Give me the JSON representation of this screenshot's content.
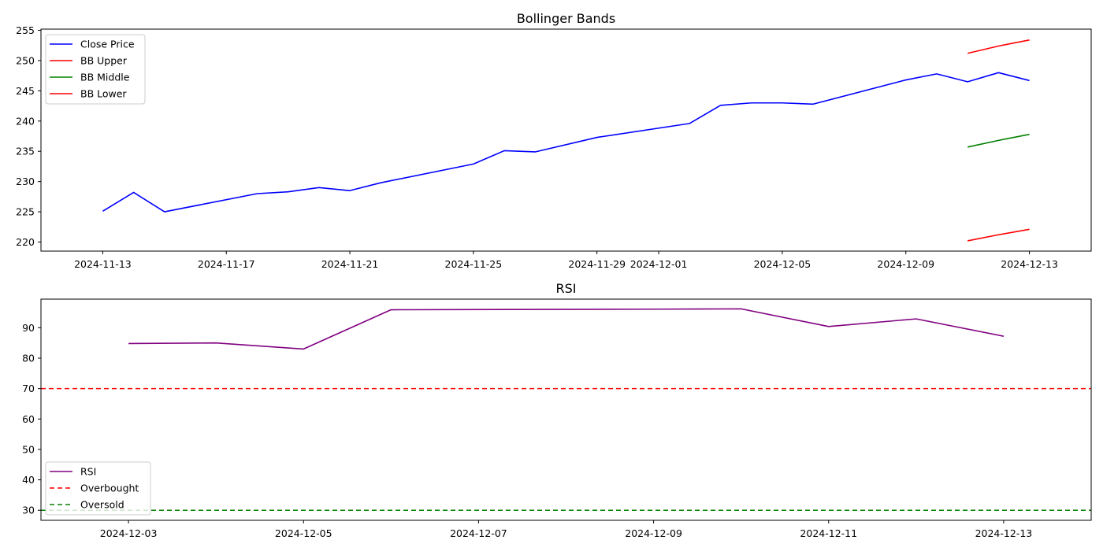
{
  "chart_data": [
    {
      "type": "line",
      "title": "Bollinger Bands",
      "xlabel": "",
      "ylabel": "",
      "x_type": "date",
      "xlim": [
        "2024-11-11",
        "2024-12-15"
      ],
      "ylim": [
        218.5,
        255.2
      ],
      "x_ticks": [
        "2024-11-13",
        "2024-11-17",
        "2024-11-21",
        "2024-11-25",
        "2024-11-29",
        "2024-12-01",
        "2024-12-05",
        "2024-12-09",
        "2024-12-13"
      ],
      "y_ticks": [
        220,
        225,
        230,
        235,
        240,
        245,
        250,
        255
      ],
      "legend_position": "upper-left",
      "series": [
        {
          "name": "Close Price",
          "color": "#0000ff",
          "dash": "",
          "points": [
            [
              "2024-11-13",
              225.1
            ],
            [
              "2024-11-14",
              228.2
            ],
            [
              "2024-11-15",
              225.0
            ],
            [
              "2024-11-18",
              228.0
            ],
            [
              "2024-11-19",
              228.3
            ],
            [
              "2024-11-20",
              229.0
            ],
            [
              "2024-11-21",
              228.5
            ],
            [
              "2024-11-22",
              229.8
            ],
            [
              "2024-11-25",
              232.9
            ],
            [
              "2024-11-26",
              235.1
            ],
            [
              "2024-11-27",
              234.9
            ],
            [
              "2024-11-29",
              237.3
            ],
            [
              "2024-12-02",
              239.6
            ],
            [
              "2024-12-03",
              242.6
            ],
            [
              "2024-12-04",
              243.0
            ],
            [
              "2024-12-05",
              243.0
            ],
            [
              "2024-12-06",
              242.8
            ],
            [
              "2024-12-09",
              246.8
            ],
            [
              "2024-12-10",
              247.8
            ],
            [
              "2024-12-11",
              246.5
            ],
            [
              "2024-12-12",
              248.0
            ],
            [
              "2024-12-13",
              246.7
            ]
          ]
        },
        {
          "name": "BB Upper",
          "color": "#ff0000",
          "dash": "",
          "points": [
            [
              "2024-12-11",
              251.2
            ],
            [
              "2024-12-12",
              252.4
            ],
            [
              "2024-12-13",
              253.4
            ]
          ]
        },
        {
          "name": "BB Middle",
          "color": "#008000",
          "dash": "",
          "points": [
            [
              "2024-12-11",
              235.7
            ],
            [
              "2024-12-12",
              236.8
            ],
            [
              "2024-12-13",
              237.8
            ]
          ]
        },
        {
          "name": "BB Lower",
          "color": "#ff0000",
          "dash": "",
          "points": [
            [
              "2024-12-11",
              220.2
            ],
            [
              "2024-12-12",
              221.2
            ],
            [
              "2024-12-13",
              222.1
            ]
          ]
        }
      ]
    },
    {
      "type": "line",
      "title": "RSI",
      "xlabel": "",
      "ylabel": "",
      "x_type": "date",
      "xlim": [
        "2024-12-02",
        "2024-12-14"
      ],
      "ylim": [
        26.7,
        99.4
      ],
      "x_ticks": [
        "2024-12-03",
        "2024-12-05",
        "2024-12-07",
        "2024-12-09",
        "2024-12-11",
        "2024-12-13"
      ],
      "y_ticks": [
        30,
        40,
        50,
        60,
        70,
        80,
        90
      ],
      "legend_position": "lower-left",
      "series": [
        {
          "name": "RSI",
          "color": "#800080",
          "dash": "",
          "points": [
            [
              "2024-12-03",
              84.8
            ],
            [
              "2024-12-04",
              85.0
            ],
            [
              "2024-12-05",
              83.0
            ],
            [
              "2024-12-06",
              95.9
            ],
            [
              "2024-12-09",
              96.1
            ],
            [
              "2024-12-10",
              96.2
            ],
            [
              "2024-12-11",
              90.4
            ],
            [
              "2024-12-12",
              92.9
            ],
            [
              "2024-12-13",
              87.2
            ]
          ]
        },
        {
          "name": "Overbought",
          "color": "#ff0000",
          "dash": "6,4",
          "hline": 70
        },
        {
          "name": "Oversold",
          "color": "#008000",
          "dash": "6,4",
          "hline": 30
        }
      ]
    }
  ]
}
